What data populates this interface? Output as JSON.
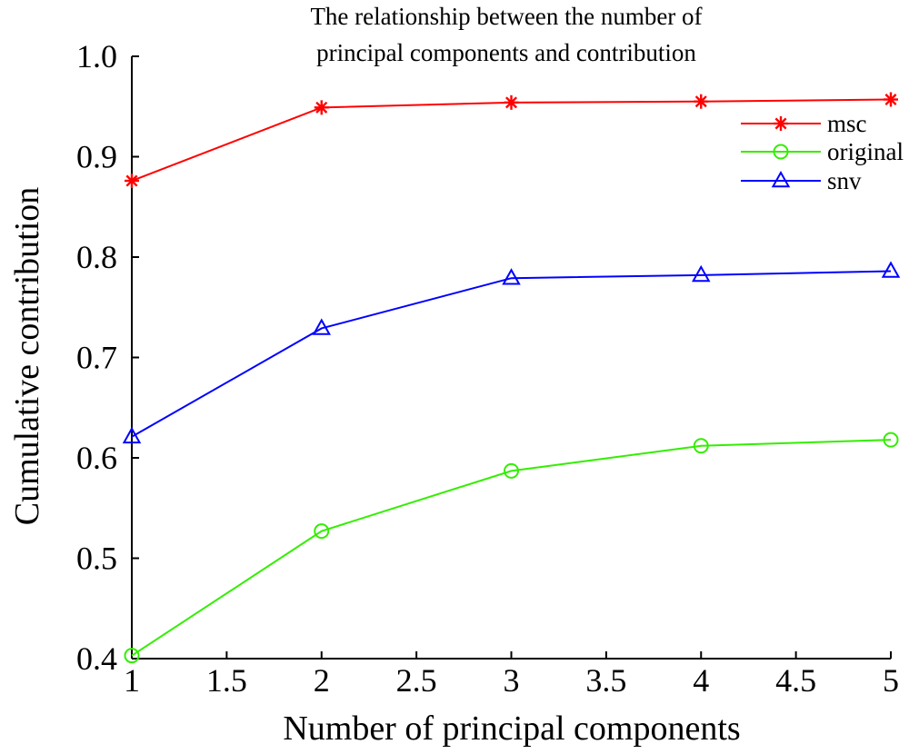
{
  "chart_data": {
    "type": "line",
    "title_lines": [
      "The relationship between the number of",
      "principal components and contribution"
    ],
    "xlabel": "Number of principal components",
    "ylabel": "Cumulative contribution",
    "xlim": [
      1,
      5
    ],
    "ylim": [
      0.4,
      1.0
    ],
    "xticks": [
      "1",
      "1.5",
      "2",
      "2.5",
      "3",
      "3.5",
      "4",
      "4.5",
      "5"
    ],
    "yticks": [
      "0.4",
      "0.5",
      "0.6",
      "0.7",
      "0.8",
      "0.9",
      "1.0"
    ],
    "grid": false,
    "legend_position": "top-right",
    "x": [
      1,
      2,
      3,
      4,
      5
    ],
    "series": [
      {
        "name": "msc",
        "color": "#ff0000",
        "marker": "asterisk",
        "values": [
          0.876,
          0.949,
          0.954,
          0.955,
          0.957
        ]
      },
      {
        "name": "original",
        "color": "#33ee00",
        "marker": "circle",
        "values": [
          0.403,
          0.527,
          0.587,
          0.612,
          0.618
        ]
      },
      {
        "name": "snv",
        "color": "#0000ff",
        "marker": "triangle",
        "values": [
          0.621,
          0.729,
          0.779,
          0.782,
          0.786
        ]
      }
    ]
  }
}
